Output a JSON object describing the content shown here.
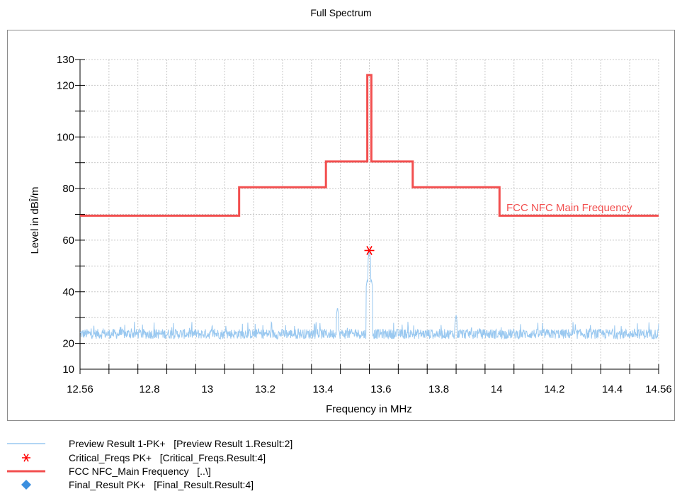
{
  "chart_data": {
    "type": "line",
    "title": "Full Spectrum",
    "xlabel": "Frequency in MHz",
    "ylabel": "Level in dBÎ/m",
    "xlim": [
      12.56,
      14.56
    ],
    "ylim": [
      10,
      130
    ],
    "x_ticks": [
      "12.56",
      "12.8",
      "13",
      "13.2",
      "13.4",
      "13.6",
      "13.8",
      "14",
      "14.2",
      "14.4",
      "14.56"
    ],
    "x_tick_values": [
      12.56,
      12.8,
      13.0,
      13.2,
      13.4,
      13.6,
      13.8,
      14.0,
      14.2,
      14.4,
      14.56
    ],
    "y_ticks": [
      "10",
      "20",
      "40",
      "60",
      "80",
      "100",
      "120",
      "130"
    ],
    "y_tick_values": [
      10,
      20,
      40,
      60,
      80,
      100,
      120,
      130
    ],
    "grid": true,
    "legend_position": "bottom",
    "series": [
      {
        "name": "Preview Result 1-PK+   [Preview Result 1.Result:2]",
        "color": "#99c8f0",
        "noise_floor": {
          "x_range": [
            12.56,
            14.56
          ],
          "level_range": [
            20,
            27
          ]
        },
        "peaks": [
          {
            "x": 13.45,
            "y": 34
          },
          {
            "x": 13.553,
            "y": 45
          },
          {
            "x": 13.56,
            "y": 56
          },
          {
            "x": 13.567,
            "y": 45
          },
          {
            "x": 13.86,
            "y": 31
          }
        ]
      },
      {
        "name": "Critical_Freqs PK+   [Critical_Freqs.Result:4]",
        "color": "#ff0000",
        "marker": "asterisk",
        "points": [
          {
            "x": 13.56,
            "y": 56
          }
        ]
      },
      {
        "name": "FCC NFC_Main Frequency   [..\\]",
        "color": "#f24f4f",
        "step_x": [
          12.56,
          13.11,
          13.11,
          13.41,
          13.41,
          13.553,
          13.553,
          13.567,
          13.567,
          13.71,
          13.71,
          14.01,
          14.01,
          14.56
        ],
        "step_y": [
          69.5,
          69.5,
          80.5,
          80.5,
          90.5,
          90.5,
          124,
          124,
          90.5,
          90.5,
          80.5,
          80.5,
          69.5,
          69.5
        ],
        "label": "FCC NFC  Main Frequency"
      },
      {
        "name": "Final_Result PK+   [Final_Result.Result:4]",
        "color": "#3b8fdf",
        "marker": "diamond",
        "points": []
      }
    ]
  },
  "legend": [
    {
      "text": "Preview Result 1-PK+   [Preview Result 1.Result:2]",
      "symbol": "line-thin",
      "color": "#99c8f0"
    },
    {
      "text": "Critical_Freqs PK+   [Critical_Freqs.Result:4]",
      "symbol": "asterisk",
      "color": "#ff0000"
    },
    {
      "text": "FCC NFC_Main Frequency   [..\\]",
      "symbol": "line-thick",
      "color": "#f24f4f"
    },
    {
      "text": "Final_Result PK+   [Final_Result.Result:4]",
      "symbol": "diamond",
      "color": "#3b8fdf"
    }
  ]
}
